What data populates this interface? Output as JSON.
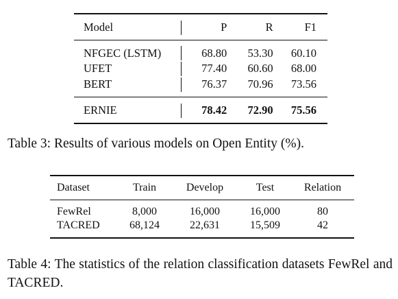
{
  "table3": {
    "headers": [
      "Model",
      "P",
      "R",
      "F1"
    ],
    "rows": [
      {
        "model": "NFGEC (LSTM)",
        "p": "68.80",
        "r": "53.30",
        "f1": "60.10"
      },
      {
        "model": "UFET",
        "p": "77.40",
        "r": "60.60",
        "f1": "68.00"
      },
      {
        "model": "BERT",
        "p": "76.37",
        "r": "70.96",
        "f1": "73.56"
      }
    ],
    "highlight": {
      "model": "ERNIE",
      "p": "78.42",
      "r": "72.90",
      "f1": "75.56"
    },
    "caption": "Table 3: Results of various models on Open Entity (%)."
  },
  "table4": {
    "headers": [
      "Dataset",
      "Train",
      "Develop",
      "Test",
      "Relation"
    ],
    "rows": [
      {
        "dataset": "FewRel",
        "train": "8,000",
        "develop": "16,000",
        "test": "16,000",
        "relation": "80"
      },
      {
        "dataset": "TACRED",
        "train": "68,124",
        "develop": "22,631",
        "test": "15,509",
        "relation": "42"
      }
    ],
    "caption": "Table 4: The statistics of the relation classification datasets FewRel and TACRED."
  }
}
